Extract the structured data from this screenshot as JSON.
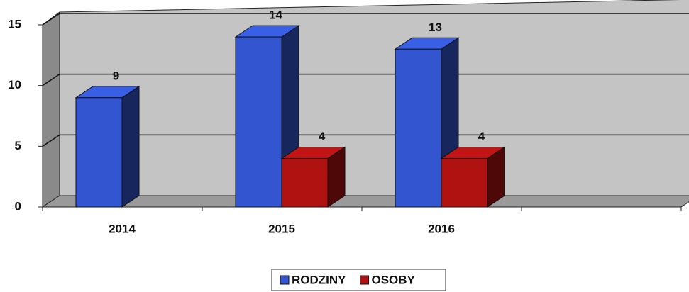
{
  "chart_data": {
    "type": "bar3d",
    "categories": [
      "2014",
      "2015",
      "2016",
      null
    ],
    "series": [
      {
        "name": "RODZINY",
        "color": "#3356d0",
        "values": [
          9,
          14,
          13,
          null
        ]
      },
      {
        "name": "OSOBY",
        "color": "#b01212",
        "values": [
          null,
          4,
          4,
          null
        ]
      }
    ],
    "ylim": [
      0,
      15
    ],
    "yticks": [
      0,
      5,
      10,
      15
    ],
    "grid": true,
    "legend": "bottom"
  }
}
